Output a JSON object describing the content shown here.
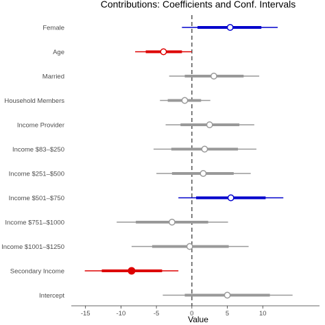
{
  "chart_data": {
    "type": "coefficient-interval",
    "title": "Contributions: Coefficients and Conf. Intervals",
    "xlabel": "Value",
    "ylabel": "",
    "xlim": [
      -17,
      18
    ],
    "xticks": [
      -15,
      -10,
      -5,
      0,
      5,
      10
    ],
    "reference_line": 0,
    "grid": false,
    "colors": {
      "positive": "#0000cc",
      "negative": "#dd0000",
      "neutral": "#999999"
    },
    "rows": [
      {
        "label": "Female",
        "estimate": 5.4,
        "inner": [
          0.8,
          9.8
        ],
        "outer": [
          -1.4,
          12.1
        ],
        "color": "positive",
        "filled": false
      },
      {
        "label": "Age",
        "estimate": -4.0,
        "inner": [
          -6.5,
          -1.4
        ],
        "outer": [
          -8.0,
          0.0
        ],
        "color": "negative",
        "filled": false
      },
      {
        "label": "Married",
        "estimate": 3.1,
        "inner": [
          -1.0,
          7.3
        ],
        "outer": [
          -3.2,
          9.5
        ],
        "color": "neutral",
        "filled": false
      },
      {
        "label": "Household Members",
        "estimate": -1.0,
        "inner": [
          -3.4,
          1.3
        ],
        "outer": [
          -4.5,
          2.6
        ],
        "color": "neutral",
        "filled": false
      },
      {
        "label": "Income Provider",
        "estimate": 2.5,
        "inner": [
          -1.6,
          6.7
        ],
        "outer": [
          -3.7,
          8.8
        ],
        "color": "neutral",
        "filled": false
      },
      {
        "label": "Income $83–$250",
        "estimate": 1.8,
        "inner": [
          -2.9,
          6.5
        ],
        "outer": [
          -5.4,
          9.1
        ],
        "color": "neutral",
        "filled": false
      },
      {
        "label": "Income $251–$500",
        "estimate": 1.6,
        "inner": [
          -2.8,
          5.9
        ],
        "outer": [
          -5.0,
          8.3
        ],
        "color": "neutral",
        "filled": false
      },
      {
        "label": "Income $501–$750",
        "estimate": 5.5,
        "inner": [
          0.6,
          10.4
        ],
        "outer": [
          -1.9,
          12.9
        ],
        "color": "positive",
        "filled": false
      },
      {
        "label": "Income $751–$1000",
        "estimate": -2.8,
        "inner": [
          -7.9,
          2.3
        ],
        "outer": [
          -10.6,
          5.1
        ],
        "color": "neutral",
        "filled": false
      },
      {
        "label": "Income $1001–$1250",
        "estimate": -0.3,
        "inner": [
          -5.6,
          5.2
        ],
        "outer": [
          -8.5,
          8.0
        ],
        "color": "neutral",
        "filled": false
      },
      {
        "label": "Secondary Income",
        "estimate": -8.5,
        "inner": [
          -12.7,
          -4.2
        ],
        "outer": [
          -15.1,
          -1.9
        ],
        "color": "negative",
        "filled": true
      },
      {
        "label": "Intercept",
        "estimate": 5.0,
        "inner": [
          -1.0,
          11.0
        ],
        "outer": [
          -4.1,
          14.2
        ],
        "color": "neutral",
        "filled": false
      }
    ]
  }
}
